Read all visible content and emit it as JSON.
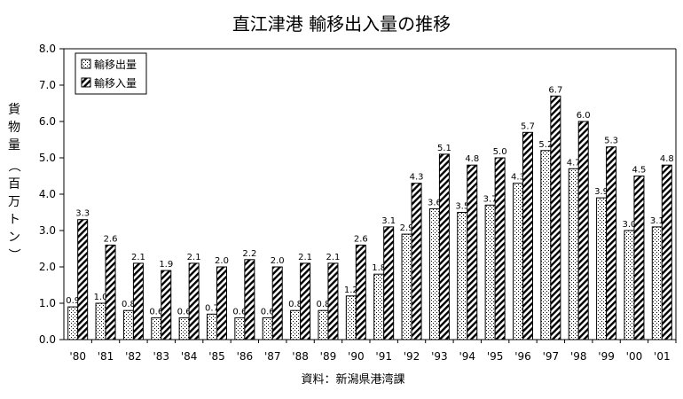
{
  "chart_data": {
    "type": "bar",
    "title": "直江津港 輸移出入量の推移",
    "ylabel": "貨物量（百万トン）",
    "ylim": [
      0,
      8
    ],
    "yticks": [
      "0.0",
      "1.0",
      "2.0",
      "3.0",
      "4.0",
      "5.0",
      "6.0",
      "7.0",
      "8.0"
    ],
    "categories": [
      "'80",
      "'81",
      "'82",
      "'83",
      "'84",
      "'85",
      "'86",
      "'87",
      "'88",
      "'89",
      "'90",
      "'91",
      "'92",
      "'93",
      "'94",
      "'95",
      "'96",
      "'97",
      "'98",
      "'99",
      "'00",
      "'01"
    ],
    "series": [
      {
        "name": "輸移出量",
        "pattern": "dots",
        "values": [
          0.9,
          1.0,
          0.8,
          0.6,
          0.6,
          0.7,
          0.6,
          0.6,
          0.8,
          0.8,
          1.2,
          1.8,
          2.9,
          3.6,
          3.5,
          3.7,
          4.3,
          5.2,
          4.7,
          3.9,
          3.0,
          3.1
        ]
      },
      {
        "name": "輸移入量",
        "pattern": "hatch",
        "values": [
          3.3,
          2.6,
          2.1,
          1.9,
          2.1,
          2.0,
          2.2,
          2.0,
          2.1,
          2.1,
          2.6,
          3.1,
          4.3,
          5.1,
          4.8,
          5.0,
          5.7,
          6.7,
          6.0,
          5.3,
          4.5,
          4.8
        ]
      }
    ],
    "legend_position": "top-left",
    "grid": false,
    "source": "資料：新潟県港湾課"
  }
}
